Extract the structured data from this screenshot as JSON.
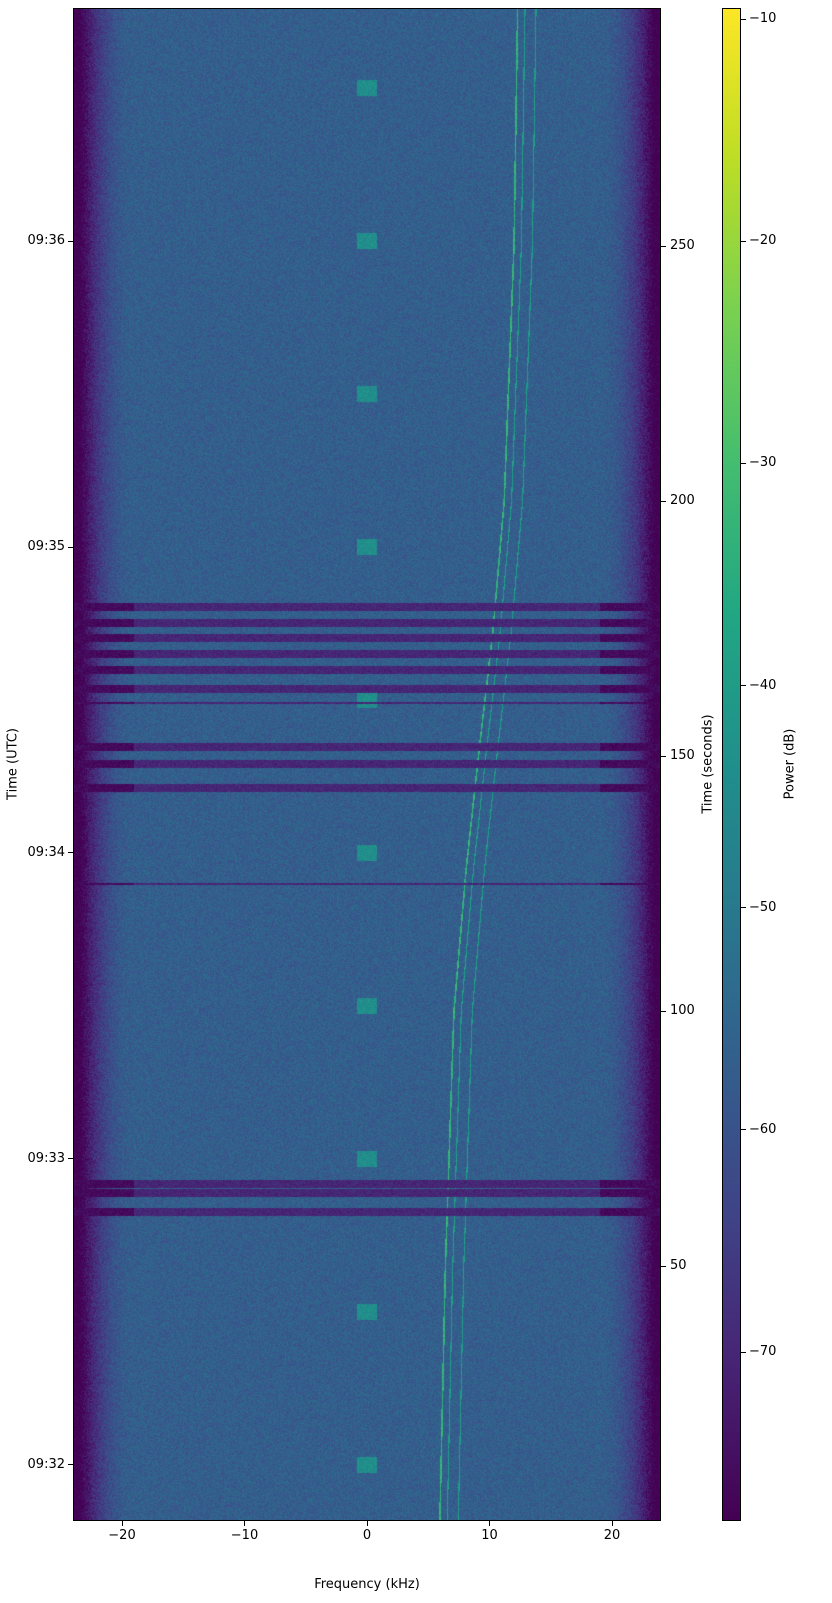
{
  "chart_data": {
    "type": "heatmap",
    "xlabel": "Frequency (kHz)",
    "ylabel_left": "Time (UTC)",
    "ylabel_right": "Time (seconds)",
    "colorbar_label": "Power (dB)",
    "colormap": "viridis",
    "xlim": [
      -24,
      24
    ],
    "ylim_seconds": [
      0,
      296.7
    ],
    "clim": [
      -77.6,
      -9.5
    ],
    "x_ticks": [
      -20,
      -10,
      0,
      10,
      20
    ],
    "x_tick_labels": [
      "−20",
      "−10",
      "0",
      "10",
      "20"
    ],
    "right_ticks": [
      50,
      100,
      150,
      200,
      250
    ],
    "right_tick_labels": [
      "50",
      "100",
      "150",
      "200",
      "250"
    ],
    "left_ticks_seconds": [
      11,
      71,
      131,
      191,
      251
    ],
    "left_tick_labels": [
      "09:32",
      "09:33",
      "09:34",
      "09:35",
      "09:36"
    ],
    "colorbar_ticks": [
      -10,
      -20,
      -30,
      -40,
      -50,
      -60,
      -70
    ],
    "colorbar_tick_labels": [
      "−10",
      "−20",
      "−30",
      "−40",
      "−50",
      "−60",
      "−70"
    ],
    "noise_floor_db": -57,
    "passband_edge_khz": 21.5,
    "signal_track": {
      "time_s": [
        0,
        50,
        100,
        128,
        150,
        175,
        200,
        250,
        297
      ],
      "freq_khz": [
        5.95,
        6.4,
        7.1,
        8.1,
        9.1,
        10.3,
        11.2,
        12.0,
        12.3
      ],
      "companion_offsets_khz": [
        0.6,
        1.5
      ],
      "power_db": -33
    },
    "dropout_times_s": [
      179.2,
      176.1,
      173.1,
      170.0,
      166.9,
      163.1,
      151.8,
      148.4,
      143.7,
      66.1,
      64.3,
      60.6
    ],
    "thin_dropout_times_s": [
      160.4,
      124.9
    ],
    "burst_times_s": [
      11,
      41,
      71,
      101,
      131,
      161,
      191,
      221,
      251,
      281
    ],
    "burst_freq_khz": 0
  }
}
